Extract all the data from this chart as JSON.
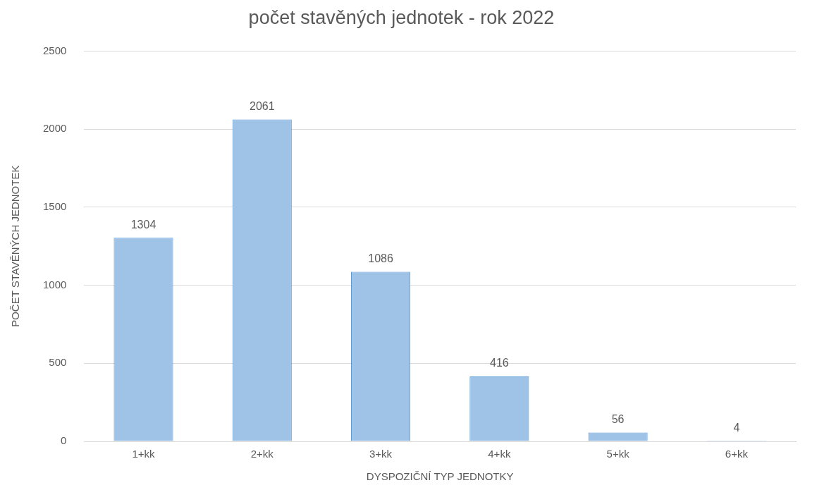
{
  "chart_data": {
    "type": "bar",
    "title": "počet stavěných jednotek - rok 2022",
    "xlabel": "DYSPOZIČNÍ TYP JEDNOTKY",
    "ylabel": "POČET STAVĚNÝCH JEDNOTEK",
    "categories": [
      "1+kk",
      "2+kk",
      "3+kk",
      "4+kk",
      "5+kk",
      "6+kk"
    ],
    "values": [
      1304,
      2061,
      1086,
      416,
      56,
      4
    ],
    "color": "#9fc2e7",
    "ylim": [
      0,
      2500
    ],
    "yticks": [
      0,
      500,
      1000,
      1500,
      2000,
      2500
    ],
    "grid": "y",
    "data_labels": true,
    "legend": false
  }
}
